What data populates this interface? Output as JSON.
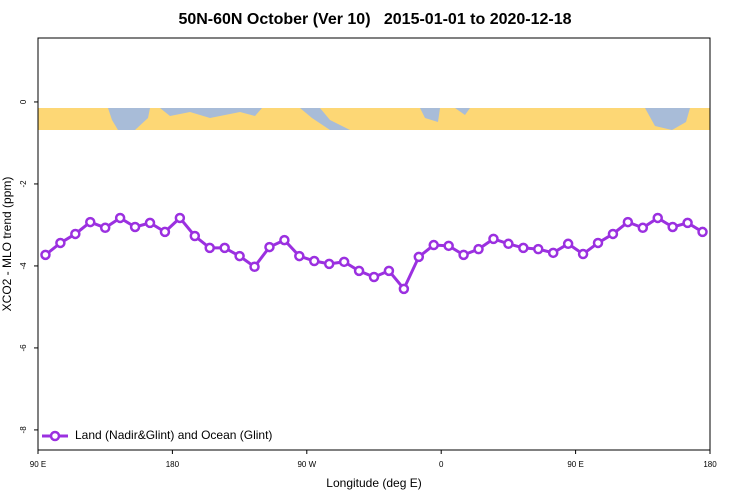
{
  "chart_data": {
    "type": "line",
    "title": "50N-60N October (Ver 10)   2015-01-01 to 2020-12-18",
    "x_label": "Longitude (deg E)",
    "y_label": "XCO2 - MLO trend (ppm)",
    "xlim": [
      90,
      540
    ],
    "xticks": [
      {
        "value": 90,
        "label": "90 E"
      },
      180,
      {
        "value": 270,
        "label": "90 W"
      },
      {
        "value": 360,
        "label": "0"
      },
      {
        "value": 450,
        "label": "90 E"
      },
      {
        "value": 540,
        "label": "180"
      }
    ],
    "ylim": [
      -8.49,
      1.56
    ],
    "yticks": [
      0,
      -2,
      -4,
      -6,
      -8
    ],
    "legend_position": "bottom-left",
    "x": [
      95,
      105,
      115,
      125,
      135,
      145,
      155,
      165,
      175,
      185,
      195,
      205,
      215,
      225,
      235,
      245,
      255,
      265,
      275,
      285,
      295,
      305,
      315,
      325,
      335,
      345,
      355,
      365,
      375,
      385,
      395,
      405,
      415,
      425,
      435,
      445,
      455,
      465,
      475,
      485,
      495,
      505,
      515,
      525,
      535
    ],
    "series": [
      {
        "name": "Land (Nadir&Glint) and Ocean (Glint)",
        "color": "#9b30e0",
        "values": [
          -3.73,
          -3.44,
          -3.22,
          -2.93,
          -3.07,
          -2.83,
          -3.05,
          -2.95,
          -3.17,
          -2.83,
          -3.27,
          -3.56,
          -3.56,
          -3.76,
          -4.02,
          -3.54,
          -3.37,
          -3.76,
          -3.88,
          -3.95,
          -3.9,
          -4.12,
          -4.27,
          -4.12,
          -4.56,
          -3.78,
          -3.49,
          -3.51,
          -3.73,
          -3.59,
          -3.34,
          -3.46,
          -3.56,
          -3.59,
          -3.68,
          -3.46,
          -3.71,
          -3.44,
          -3.22,
          -2.93,
          -3.07,
          -2.83,
          -3.05,
          -2.95,
          -3.17
        ]
      }
    ]
  }
}
